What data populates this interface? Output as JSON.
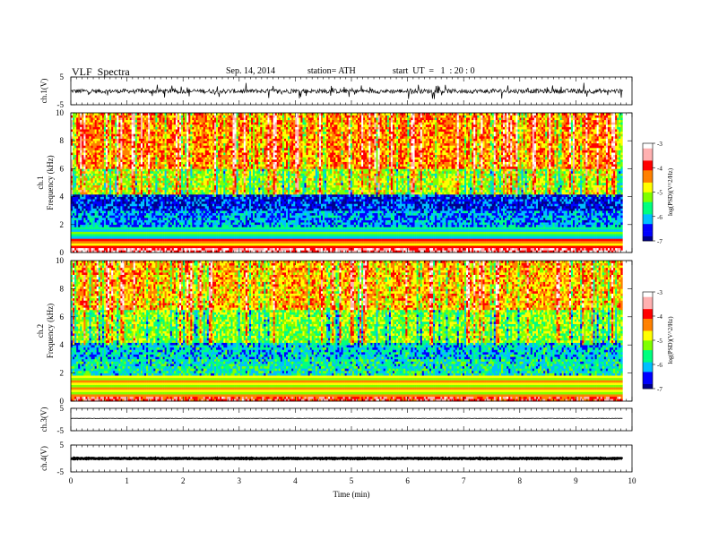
{
  "header": {
    "title": "VLF  Spectra",
    "date": "Sep. 14, 2014",
    "station": "station= ATH",
    "start": "start  UT  =   1  : 20 : 0"
  },
  "chart_data": [
    {
      "type": "line",
      "panel": "ch1-waveform",
      "ylabel": "ch.1(V)",
      "yticks": [
        "5",
        "-5"
      ],
      "ylim": [
        -5,
        5
      ],
      "xlim": [
        0,
        10
      ],
      "data_extent_min": 9.83,
      "mean_level": -0.1,
      "amplitude": 0.8,
      "style": "dense noisy waveform"
    },
    {
      "type": "heatmap",
      "panel": "ch1-spectrogram",
      "ylabel": [
        "ch.1",
        "Frequency  (kHz)"
      ],
      "yticks": [
        "0",
        "2",
        "4",
        "6",
        "8",
        "10"
      ],
      "ylim": [
        0,
        10
      ],
      "xlim": [
        0,
        10
      ],
      "data_extent_min": 9.83,
      "colorbar": {
        "label": "log(PSD)(V^2/Hz)",
        "ticks": [
          "-3",
          "-4",
          "-5",
          "-6",
          "-7"
        ],
        "range": [
          -7,
          -3
        ]
      },
      "bands_khz": [
        {
          "from": 0.0,
          "to": 0.3,
          "logpsd": -3.5
        },
        {
          "from": 0.3,
          "to": 1.0,
          "logpsd": -4.5
        },
        {
          "from": 1.0,
          "to": 1.8,
          "logpsd": -5.5
        },
        {
          "from": 1.8,
          "to": 3.0,
          "logpsd": -6.2
        },
        {
          "from": 3.0,
          "to": 4.2,
          "logpsd": -6.6
        },
        {
          "from": 4.2,
          "to": 6.0,
          "logpsd": -5.0
        },
        {
          "from": 6.0,
          "to": 10.0,
          "logpsd": -4.3
        }
      ]
    },
    {
      "type": "heatmap",
      "panel": "ch2-spectrogram",
      "ylabel": [
        "ch.2",
        "Frequency  (kHz)"
      ],
      "yticks": [
        "0",
        "2",
        "4",
        "6",
        "8",
        "10"
      ],
      "ylim": [
        0,
        10
      ],
      "xlim": [
        0,
        10
      ],
      "data_extent_min": 9.83,
      "colorbar": {
        "label": "log(PSD)(V^2/Hz)",
        "ticks": [
          "-3",
          "-4",
          "-5",
          "-6",
          "-7"
        ],
        "range": [
          -7,
          -3
        ]
      },
      "bands_khz": [
        {
          "from": 0.0,
          "to": 0.3,
          "logpsd": -3.8
        },
        {
          "from": 0.3,
          "to": 1.8,
          "logpsd": -4.8
        },
        {
          "from": 1.8,
          "to": 3.0,
          "logpsd": -5.8
        },
        {
          "from": 3.0,
          "to": 4.2,
          "logpsd": -6.0
        },
        {
          "from": 4.2,
          "to": 6.5,
          "logpsd": -5.2
        },
        {
          "from": 6.5,
          "to": 10.0,
          "logpsd": -4.5
        }
      ]
    },
    {
      "type": "line",
      "panel": "ch3-waveform",
      "ylabel": "ch.3(V)",
      "yticks": [
        "5",
        "-5"
      ],
      "ylim": [
        -5,
        5
      ],
      "xlim": [
        0,
        10
      ],
      "data_extent_min": 9.83,
      "mean_level": 0.5,
      "amplitude": 0.08,
      "style": "thin flat line"
    },
    {
      "type": "line",
      "panel": "ch4-waveform",
      "ylabel": "ch.4(V)",
      "yticks": [
        "5",
        "-5"
      ],
      "ylim": [
        -5,
        5
      ],
      "xlim": [
        0,
        10
      ],
      "data_extent_min": 9.83,
      "mean_level": 0.0,
      "amplitude": 0.15,
      "style": "thick flat line",
      "xlabel": "Time  (min)",
      "xticks": [
        "0",
        "1",
        "2",
        "3",
        "4",
        "5",
        "6",
        "7",
        "8",
        "9",
        "10"
      ]
    }
  ],
  "colors": {
    "scale": [
      "#00008b",
      "#0000ff",
      "#00bfff",
      "#00ff7f",
      "#7fff00",
      "#ffff00",
      "#ff8000",
      "#ff0000",
      "#ffb0b0",
      "#ffffff"
    ]
  }
}
